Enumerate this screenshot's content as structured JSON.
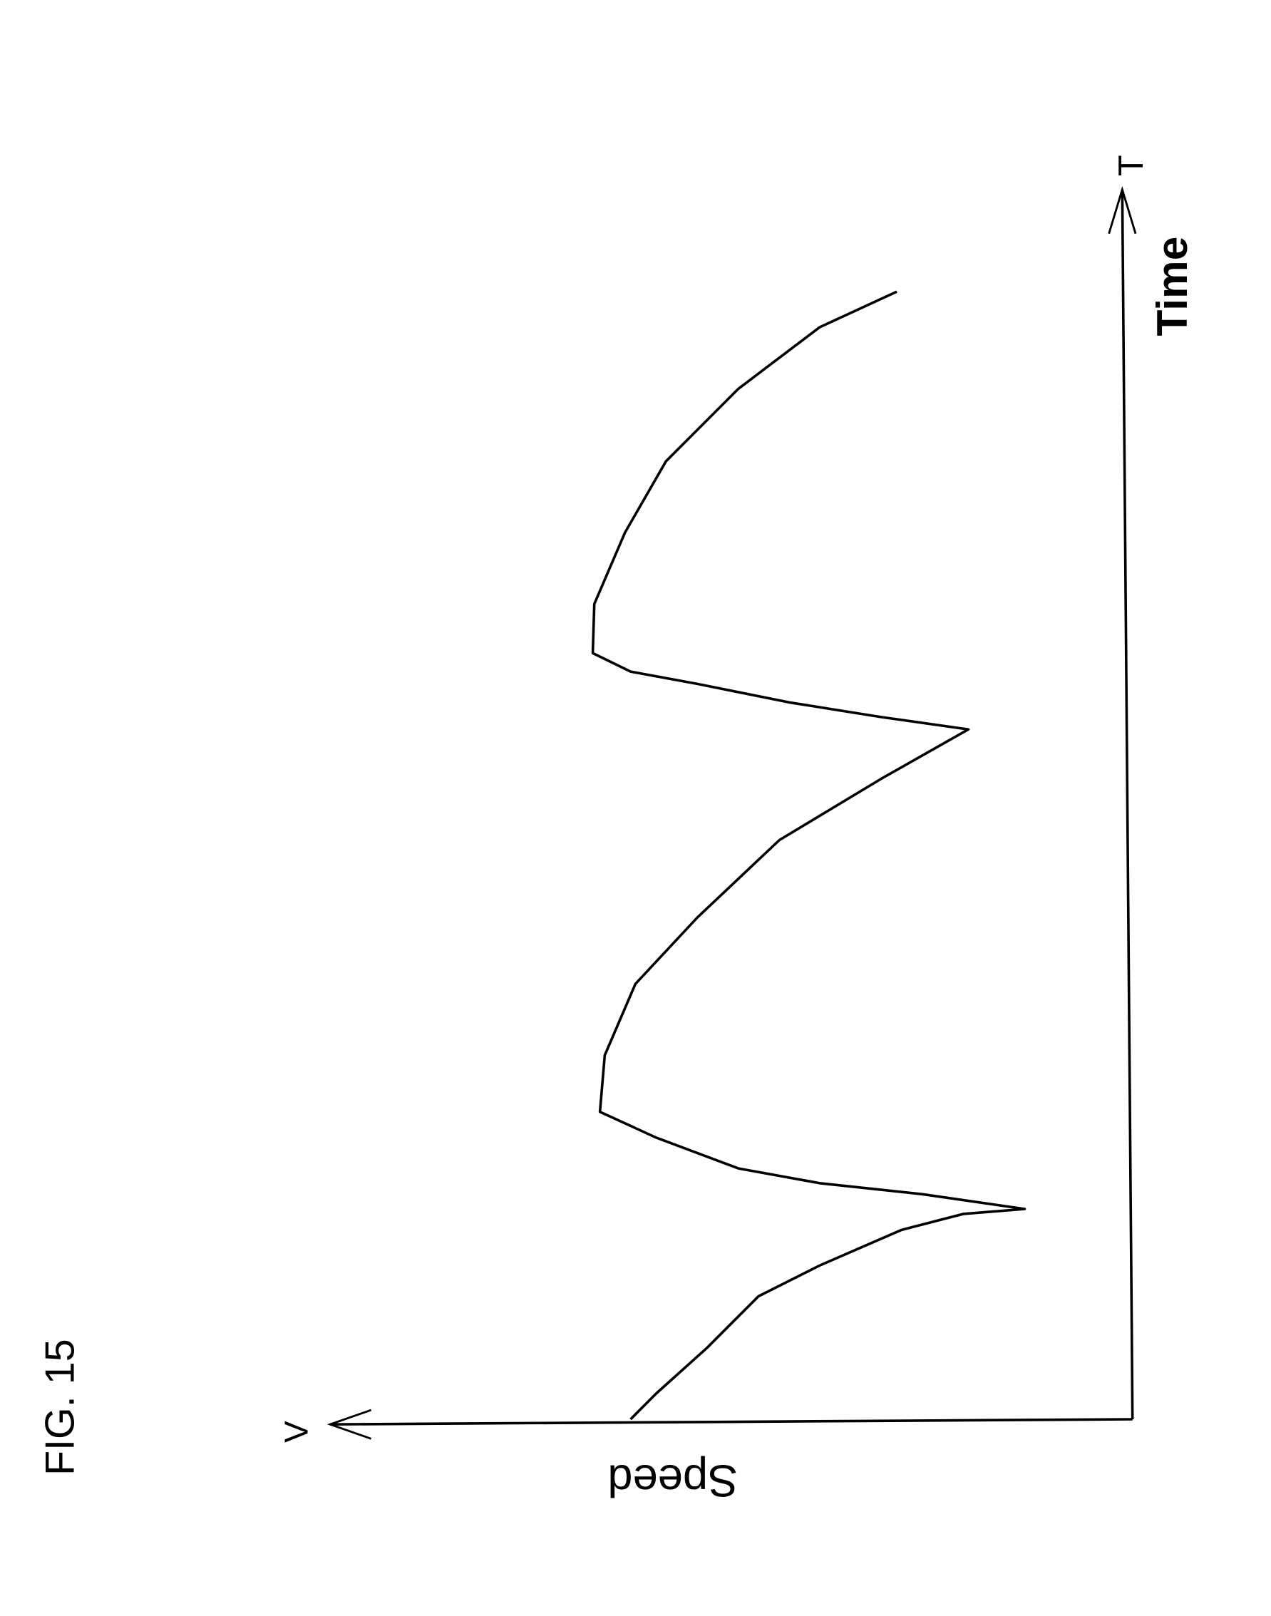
{
  "figure_label": "FIG. 15",
  "chart_data": {
    "type": "line",
    "orientation": "rotated: time axis vertical pointing up, speed axis horizontal pointing left",
    "xlabel": "Time",
    "x_axis_symbol": "T",
    "ylabel": "Speed",
    "y_axis_symbol": "V",
    "xlim": [
      0,
      100
    ],
    "ylim": [
      0,
      100
    ],
    "grid": false,
    "series": [
      {
        "t": [
          0,
          2.1,
          5.8,
          10,
          12.5,
          15.4,
          16.7,
          17.1,
          18.3,
          19.2,
          20.4,
          22.9,
          25,
          29.6,
          35.4,
          40.8,
          47.1,
          52.1,
          56.1,
          57.1,
          58.3,
          59.8,
          60.8,
          62.3,
          66.3,
          72.1,
          77.9,
          83.8,
          88.8,
          91.7
        ],
        "v": [
          62.4,
          59.2,
          52.9,
          46.5,
          38.9,
          28.7,
          21.0,
          13.4,
          26.1,
          38.9,
          49.0,
          59.2,
          66.2,
          65.6,
          61.8,
          54.1,
          43.9,
          31.2,
          20.4,
          31.2,
          42.7,
          54.1,
          62.4,
          67.1,
          66.9,
          63.1,
          58.0,
          49.0,
          38.9,
          29.3
        ]
      }
    ],
    "colors": {
      "line": "#000000",
      "background": "#ffffff"
    }
  }
}
